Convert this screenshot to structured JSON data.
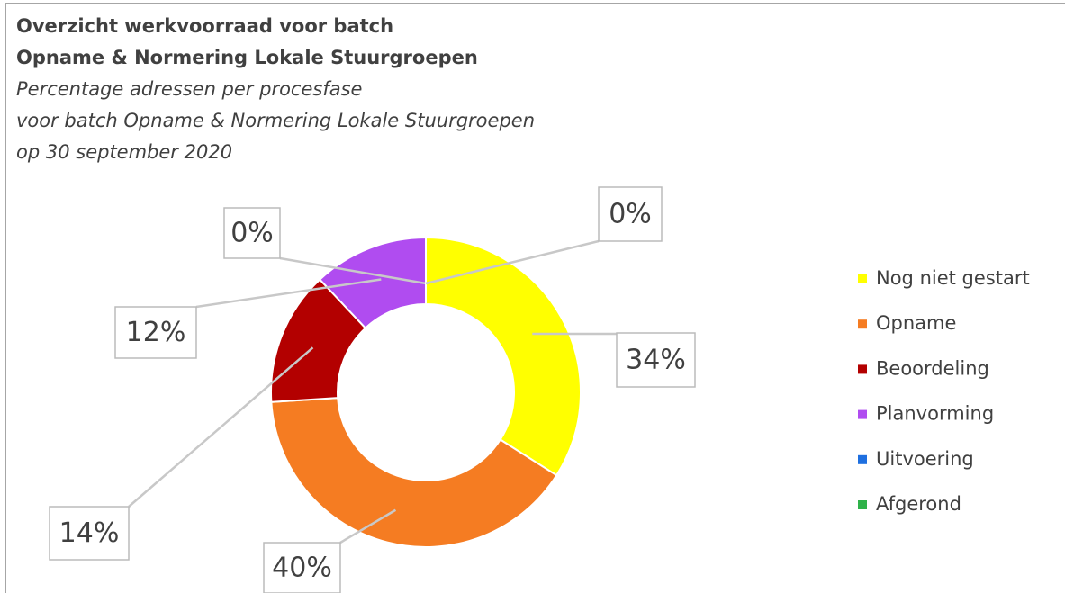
{
  "chart_data": {
    "type": "donut",
    "title": "Overzicht werkvoorraad voor batch",
    "title_line2": "Opname & Normering Lokale Stuurgroepen",
    "subtitle": [
      "Percentage adressen per procesfase",
      "voor batch Opname & Normering Lokale Stuurgroepen",
      "op 30 september 2020"
    ],
    "categories": [
      "Nog niet gestart",
      "Opname",
      "Beoordeling",
      "Planvorming",
      "Uitvoering",
      "Afgerond"
    ],
    "values": [
      34,
      40,
      14,
      12,
      0,
      0
    ],
    "value_labels": [
      "34%",
      "40%",
      "14%",
      "12%",
      "0%",
      "0%"
    ],
    "colors": [
      "#ffff00",
      "#f57c22",
      "#b30000",
      "#b04cf0",
      "#1e6fe0",
      "#2fb24a"
    ]
  }
}
